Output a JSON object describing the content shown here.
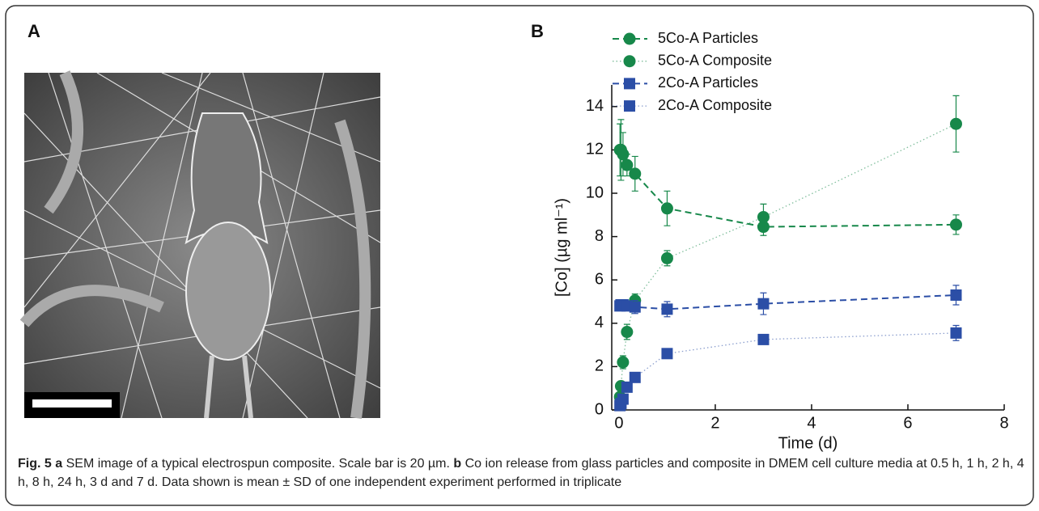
{
  "panels": {
    "a_label": "A",
    "b_label": "B"
  },
  "chart_data": {
    "type": "line",
    "x_label": "Time (d)",
    "y_label": "[Co] (µg ml⁻¹)",
    "x": [
      0.0208,
      0.0417,
      0.0833,
      0.1667,
      0.3333,
      1,
      3,
      7
    ],
    "xlim": [
      -0.15,
      8
    ],
    "xticks": [
      0,
      2,
      4,
      6,
      8
    ],
    "ylim": [
      0,
      15
    ],
    "yticks": [
      0,
      2,
      4,
      6,
      8,
      10,
      12,
      14
    ],
    "legend": "top-left",
    "series": [
      {
        "name": "5Co-A Particles",
        "color": "#17884a",
        "line_style": "dashed",
        "marker": "circle",
        "values": [
          12.0,
          12.0,
          11.8,
          11.3,
          10.9,
          9.3,
          8.45,
          8.55
        ],
        "errors": [
          1.2,
          1.4,
          1.0,
          0.5,
          0.8,
          0.8,
          0.4,
          0.45
        ]
      },
      {
        "name": "5Co-A Composite",
        "color": "#17884a",
        "line_style": "dotted",
        "marker": "circle",
        "values": [
          0.6,
          1.1,
          2.2,
          3.6,
          5.05,
          7.0,
          8.9,
          13.2
        ],
        "errors": [
          0.1,
          0.1,
          0.3,
          0.35,
          0.3,
          0.35,
          0.6,
          1.3
        ]
      },
      {
        "name": "2Co-A Particles",
        "color": "#2b4ea6",
        "line_style": "dashed",
        "marker": "square",
        "values": [
          4.8,
          4.85,
          4.85,
          4.8,
          4.75,
          4.65,
          4.9,
          5.3
        ],
        "errors": [
          0.2,
          0.2,
          0.2,
          0.2,
          0.3,
          0.35,
          0.5,
          0.45
        ]
      },
      {
        "name": "2Co-A Composite",
        "color": "#2b4ea6",
        "line_style": "dotted",
        "marker": "square",
        "values": [
          0.2,
          0.3,
          0.5,
          1.05,
          1.5,
          2.6,
          3.25,
          3.55
        ],
        "errors": [
          0.05,
          0.05,
          0.1,
          0.1,
          0.1,
          0.1,
          0.15,
          0.35
        ]
      }
    ]
  },
  "caption": {
    "fig_label": "Fig. 5",
    "a_label": "a",
    "a_text": "SEM image of a typical electrospun composite. Scale bar is 20 µm.",
    "b_label": "b",
    "b_text": "Co ion release from glass particles and composite in DMEM cell culture media at 0.5 h, 1 h, 2 h, 4 h, 8 h, 24 h, 3 d and 7 d. Data shown is mean ± SD of one independent experiment performed in triplicate"
  }
}
